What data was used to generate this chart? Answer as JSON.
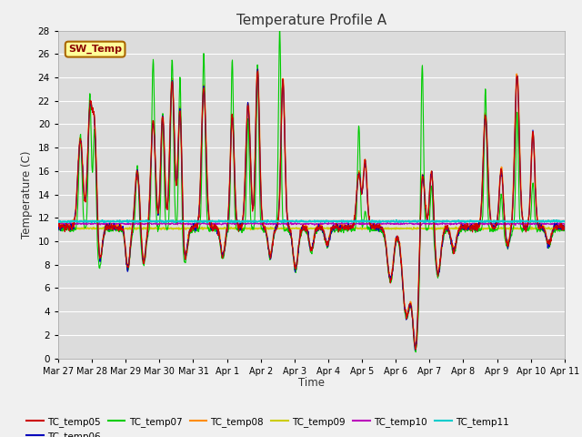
{
  "title": "Temperature Profile A",
  "xlabel": "Time",
  "ylabel": "Temperature (C)",
  "ylim": [
    0,
    28
  ],
  "yticks": [
    0,
    2,
    4,
    6,
    8,
    10,
    12,
    14,
    16,
    18,
    20,
    22,
    24,
    26,
    28
  ],
  "background_color": "#dcdcdc",
  "fig_facecolor": "#f0f0f0",
  "series_colors": {
    "TC_temp05": "#cc0000",
    "TC_temp06": "#0000bb",
    "TC_temp07": "#00cc00",
    "TC_temp08": "#ff8c00",
    "TC_temp09": "#cccc00",
    "TC_temp10": "#bb00bb",
    "TC_temp11": "#00cccc"
  },
  "sw_temp_label": "SW_Temp",
  "date_labels": [
    "Mar 27",
    "Mar 28",
    "Mar 29",
    "Mar 30",
    "Mar 31",
    "Apr 1",
    "Apr 2",
    "Apr 3",
    "Apr 4",
    "Apr 5",
    "Apr 6",
    "Apr 7",
    "Apr 8",
    "Apr 9",
    "Apr 10",
    "Apr 11"
  ],
  "grid_color": "#ffffff"
}
